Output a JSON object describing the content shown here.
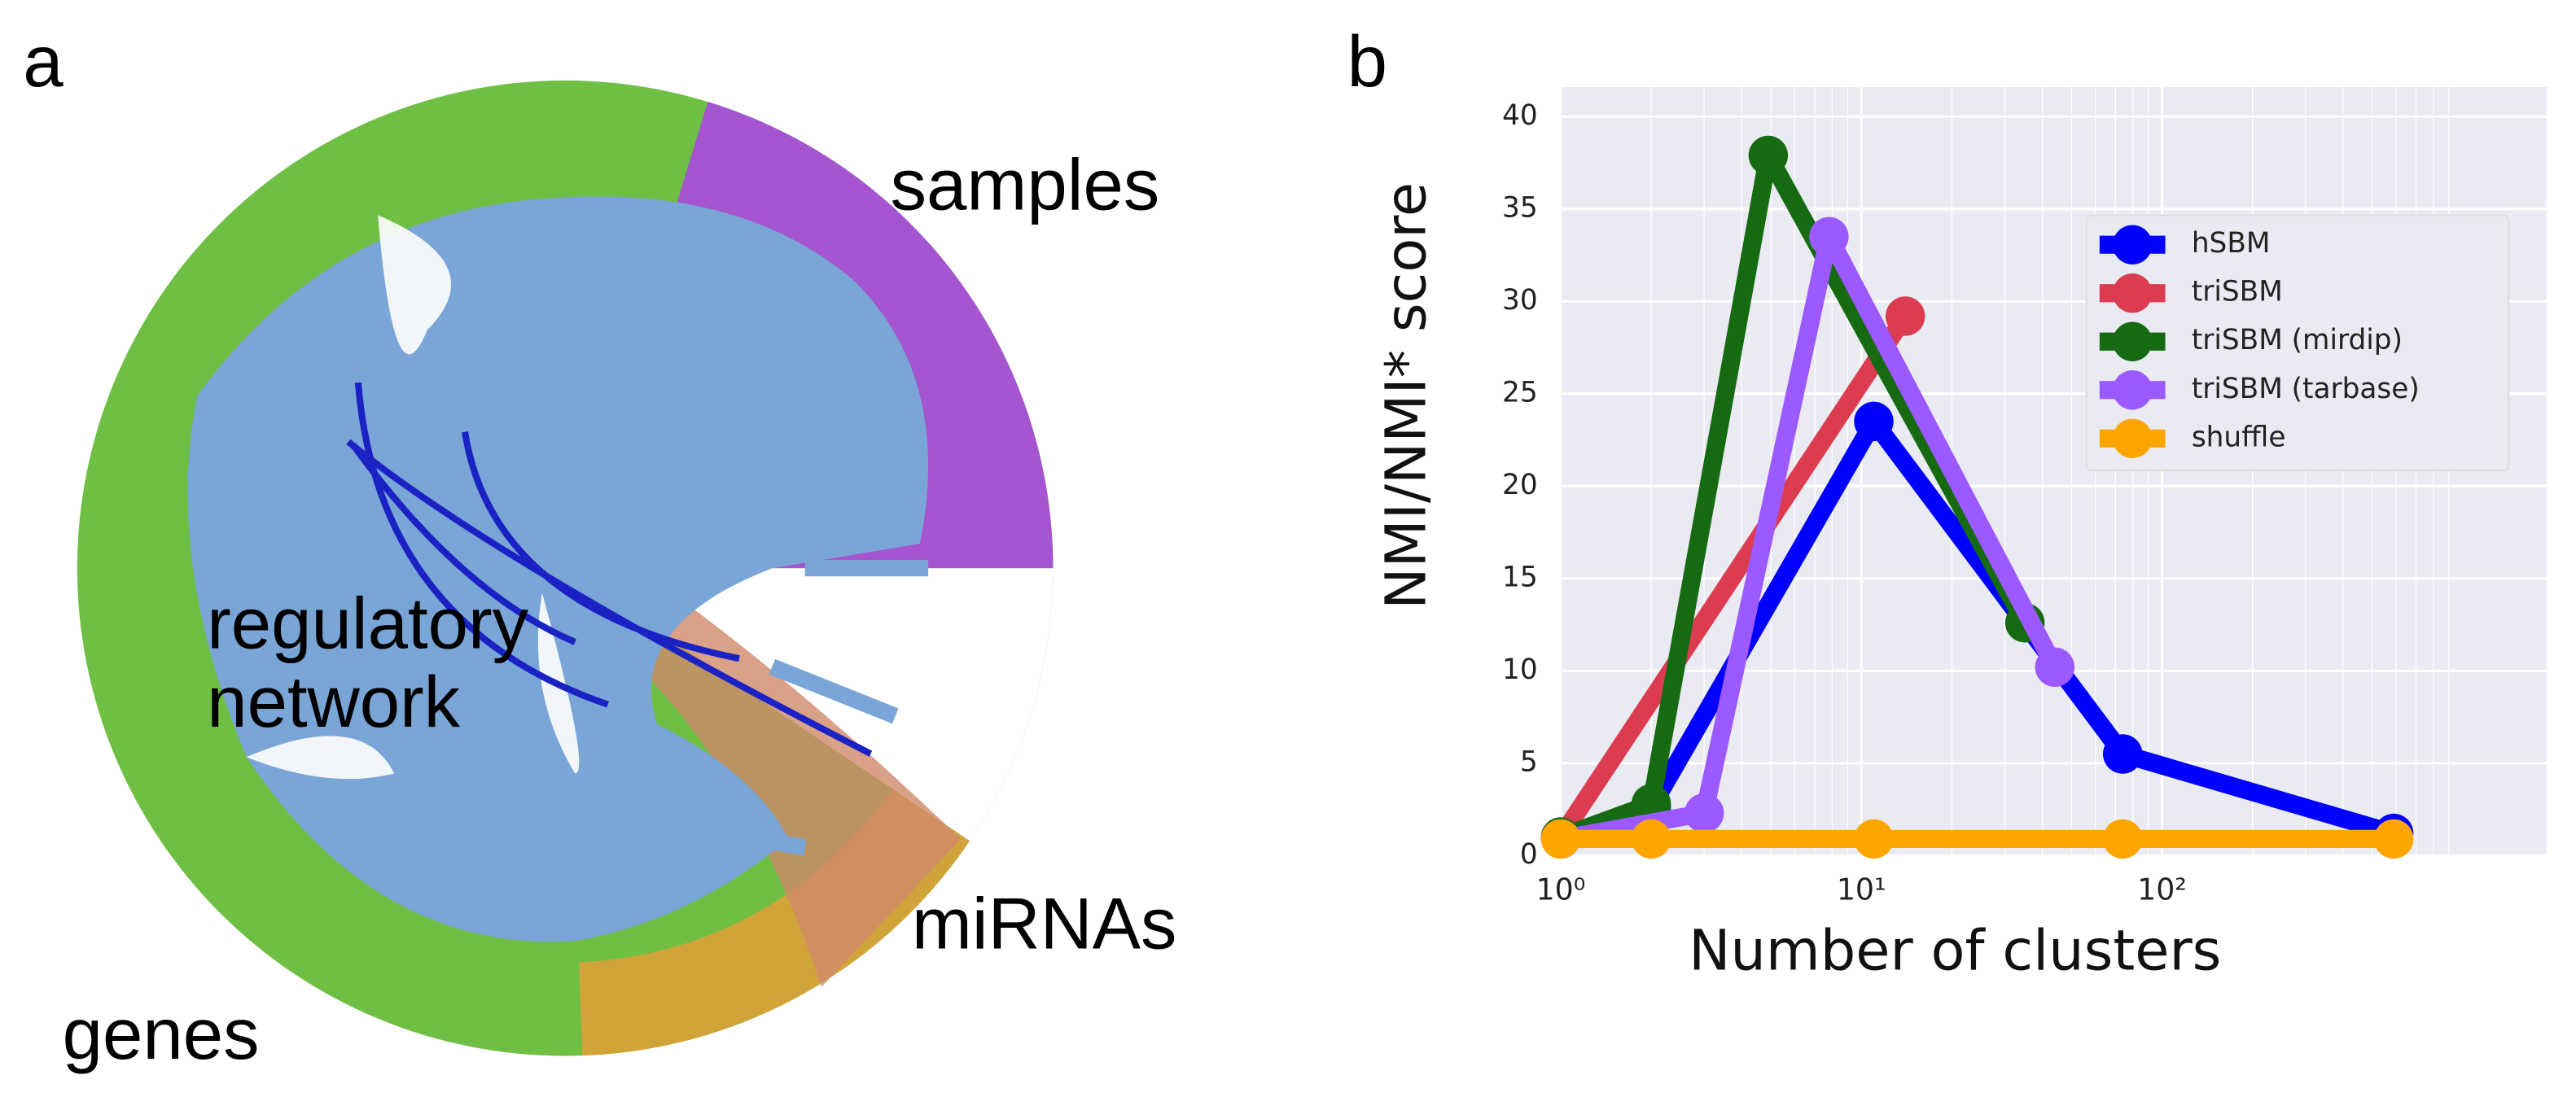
{
  "panel_a": {
    "label": "a",
    "samples": "samples",
    "network_lines": [
      "regulatory",
      "network"
    ],
    "mirnas": "miRNAs",
    "genes": "genes"
  },
  "chart_data": {
    "type": "line",
    "panel_label": "b",
    "xlabel": "Number of clusters",
    "ylabel": "NMI/NMI* score",
    "xscale": "log",
    "xlim": [
      1,
      1900
    ],
    "ylim": [
      0,
      41.6
    ],
    "xticks": [
      {
        "value": 1,
        "label": "10⁰"
      },
      {
        "value": 10,
        "label": "10¹"
      },
      {
        "value": 100,
        "label": "10²"
      }
    ],
    "yticks": [
      0,
      5,
      10,
      15,
      20,
      25,
      30,
      35,
      40
    ],
    "grid": true,
    "legend": "upper right",
    "series": [
      {
        "name": "hSBM",
        "color": "#0000ff",
        "x": [
          1,
          2,
          11,
          74,
          590
        ],
        "values": [
          1.0,
          2.6,
          23.5,
          5.5,
          1.2
        ]
      },
      {
        "name": "triSBM",
        "color": "#dc3c50",
        "x": [
          1,
          14
        ],
        "values": [
          1.0,
          29.2
        ]
      },
      {
        "name": "triSBM (mirdip)",
        "color": "#156a12",
        "x": [
          1,
          2,
          4.9,
          35
        ],
        "values": [
          1.0,
          2.8,
          37.9,
          12.6
        ]
      },
      {
        "name": "triSBM (tarbase)",
        "color": "#9b59ff",
        "x": [
          1,
          3,
          7.8,
          44
        ],
        "values": [
          0.9,
          2.3,
          33.5,
          10.2
        ]
      },
      {
        "name": "shuffle",
        "color": "#ffa500",
        "x": [
          1,
          2,
          11,
          74,
          590
        ],
        "values": [
          0.9,
          0.9,
          0.9,
          0.9,
          0.9
        ]
      }
    ]
  }
}
